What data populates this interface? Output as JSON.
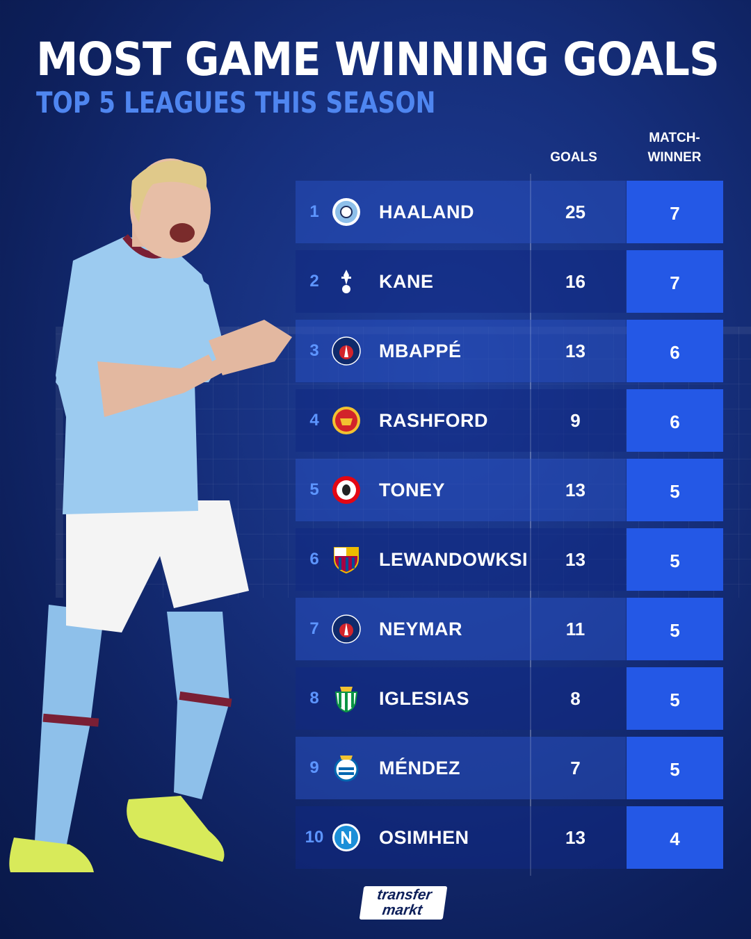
{
  "header": {
    "title": "MOST GAME WINNING GOALS",
    "subtitle": "TOP 5 LEAGUES THIS SEASON"
  },
  "columns": {
    "goals": "GOALS",
    "match_winner_line1": "MATCH-",
    "match_winner_line2": "WINNER"
  },
  "rows": [
    {
      "rank": "1",
      "name": "HAALAND",
      "goals": "25",
      "match_winner": "7",
      "crest": "man-city-crest-icon"
    },
    {
      "rank": "2",
      "name": "KANE",
      "goals": "16",
      "match_winner": "7",
      "crest": "tottenham-crest-icon"
    },
    {
      "rank": "3",
      "name": "MBAPPÉ",
      "goals": "13",
      "match_winner": "6",
      "crest": "psg-crest-icon"
    },
    {
      "rank": "4",
      "name": "RASHFORD",
      "goals": "9",
      "match_winner": "6",
      "crest": "man-united-crest-icon"
    },
    {
      "rank": "5",
      "name": "TONEY",
      "goals": "13",
      "match_winner": "5",
      "crest": "brentford-crest-icon"
    },
    {
      "rank": "6",
      "name": "LEWANDOWKSI",
      "goals": "13",
      "match_winner": "5",
      "crest": "barcelona-crest-icon"
    },
    {
      "rank": "7",
      "name": "NEYMAR",
      "goals": "11",
      "match_winner": "5",
      "crest": "psg-crest-icon"
    },
    {
      "rank": "8",
      "name": "IGLESIAS",
      "goals": "8",
      "match_winner": "5",
      "crest": "real-betis-crest-icon"
    },
    {
      "rank": "9",
      "name": "MÉNDEZ",
      "goals": "7",
      "match_winner": "5",
      "crest": "real-sociedad-crest-icon"
    },
    {
      "rank": "10",
      "name": "OSIMHEN",
      "goals": "13",
      "match_winner": "4",
      "crest": "napoli-crest-icon"
    }
  ],
  "logo": {
    "line1": "transfer",
    "line2": "markt"
  },
  "colors": {
    "accent": "#2458e6",
    "subtitle": "#4f86f0",
    "rank": "#5d95ff"
  }
}
